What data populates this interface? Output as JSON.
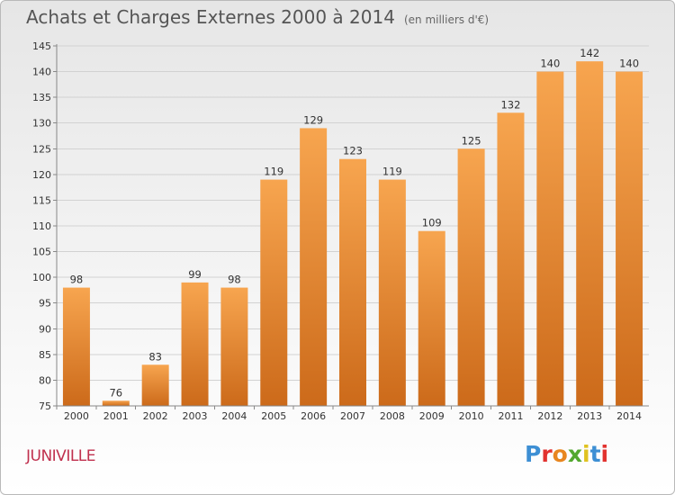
{
  "header": {
    "title": "Achats et Charges Externes 2000 à 2014",
    "unit": "(en milliers d'€)"
  },
  "footer": {
    "town": "JUNIVILLE",
    "brand": "Proxiti"
  },
  "colors": {
    "bar_light": "#f7a54f",
    "bar_dark": "#cc6a1a",
    "brand": [
      "#3d8fd4",
      "#e2322f",
      "#e8861f",
      "#53a82f",
      "#e0c21f",
      "#3d8fd4",
      "#e2322f"
    ]
  },
  "chart_data": {
    "type": "bar",
    "categories": [
      "2000",
      "2001",
      "2002",
      "2003",
      "2004",
      "2005",
      "2006",
      "2007",
      "2008",
      "2009",
      "2010",
      "2011",
      "2012",
      "2013",
      "2014"
    ],
    "values": [
      98,
      76,
      83,
      99,
      98,
      119,
      129,
      123,
      119,
      109,
      125,
      132,
      140,
      142,
      140
    ],
    "ylim": [
      75,
      145
    ],
    "yticks": [
      75,
      80,
      85,
      90,
      95,
      100,
      105,
      110,
      115,
      120,
      125,
      130,
      135,
      140,
      145
    ],
    "grid": true
  }
}
